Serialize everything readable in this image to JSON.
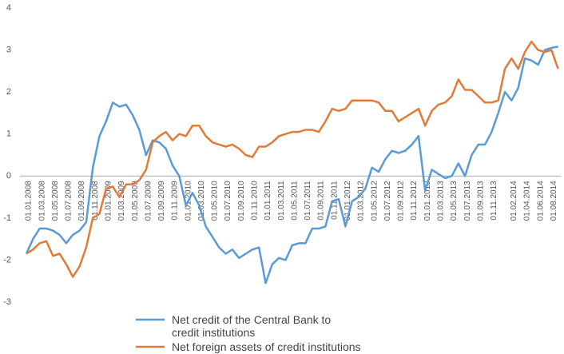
{
  "chart_data": {
    "type": "line",
    "categories": [
      "01.01.2008",
      null,
      "01.03.2008",
      null,
      "01.05.2008",
      null,
      "01.07.2008",
      null,
      "01.09.2008",
      null,
      "01.11.2008",
      null,
      "01.01.2009",
      null,
      "01.03.2009",
      null,
      "01.05.2009",
      null,
      "01.07.2009",
      null,
      "01.09.2009",
      null,
      "01.11.2009",
      null,
      "01.01.2010",
      null,
      "01.03.2010",
      null,
      "01.05.2010",
      null,
      "01.07.2010",
      null,
      "01.09.2010",
      null,
      "01.11.2010",
      null,
      "01.01.2011",
      null,
      "01.03.2011",
      null,
      "01.05.2011",
      null,
      "01.07.2011",
      null,
      "01.09.2011",
      null,
      "01.11.2011",
      null,
      "01.01.2012",
      null,
      "01.03.2012",
      null,
      "01.05.2012",
      null,
      "01.07.2012",
      null,
      "01.09.2012",
      null,
      "01.11.2012",
      null,
      "01.01.2013",
      null,
      "01.03.2013",
      null,
      "01.05.2013",
      null,
      "01.07.2013",
      null,
      "01.09.2013",
      null,
      "01.11.2013",
      null,
      null,
      "01.02.2014",
      null,
      "01.04.2014",
      null,
      "01.06.2014",
      null,
      "01.08.2014",
      null
    ],
    "series": [
      {
        "name": "Net credit of the Central Bank to credit institutions",
        "color": "#5b9bd5",
        "values": [
          -1.85,
          -1.5,
          -1.25,
          -1.25,
          -1.3,
          -1.4,
          -1.6,
          -1.4,
          -1.3,
          -1.1,
          0.2,
          0.95,
          1.3,
          1.75,
          1.65,
          1.7,
          1.45,
          1.1,
          0.5,
          0.85,
          0.8,
          0.65,
          0.25,
          0.0,
          -0.7,
          -0.4,
          -0.7,
          -1.2,
          -1.45,
          -1.7,
          -1.85,
          -1.75,
          -1.95,
          -1.85,
          -1.75,
          -1.7,
          -2.55,
          -2.1,
          -1.95,
          -2.0,
          -1.65,
          -1.6,
          -1.6,
          -1.25,
          -1.25,
          -1.2,
          -0.6,
          -0.55,
          -1.2,
          -0.6,
          -0.5,
          -0.3,
          0.2,
          0.1,
          0.4,
          0.6,
          0.55,
          0.6,
          0.75,
          0.95,
          -0.35,
          0.15,
          0.05,
          -0.05,
          0.0,
          0.3,
          0.0,
          0.5,
          0.75,
          0.75,
          1.05,
          1.5,
          2.0,
          1.8,
          2.1,
          2.8,
          2.75,
          2.65,
          3.0,
          3.05,
          3.08
        ]
      },
      {
        "name": "Net foreign assets of credit institutions",
        "color": "#e07b39",
        "values": [
          -1.85,
          -1.75,
          -1.6,
          -1.55,
          -1.9,
          -1.85,
          -2.1,
          -2.4,
          -2.15,
          -1.7,
          -1.0,
          -0.9,
          -0.3,
          -0.25,
          -0.5,
          -0.2,
          -0.2,
          -0.1,
          0.15,
          0.8,
          0.95,
          1.05,
          0.85,
          1.0,
          0.95,
          1.2,
          1.2,
          0.95,
          0.8,
          0.75,
          0.7,
          0.75,
          0.65,
          0.5,
          0.45,
          0.7,
          0.7,
          0.8,
          0.95,
          1.0,
          1.05,
          1.05,
          1.1,
          1.1,
          1.05,
          1.3,
          1.6,
          1.55,
          1.6,
          1.8,
          1.8,
          1.8,
          1.8,
          1.75,
          1.55,
          1.55,
          1.3,
          1.4,
          1.5,
          1.6,
          1.2,
          1.55,
          1.7,
          1.75,
          1.9,
          2.3,
          2.05,
          2.05,
          1.9,
          1.75,
          1.75,
          1.8,
          2.55,
          2.8,
          2.55,
          2.95,
          3.2,
          3.0,
          2.95,
          3.0,
          2.55
        ]
      }
    ],
    "ylim": [
      -3,
      4
    ],
    "yticks": [
      -3,
      -2,
      -1,
      0,
      1,
      2,
      3,
      4
    ],
    "grid": false
  }
}
